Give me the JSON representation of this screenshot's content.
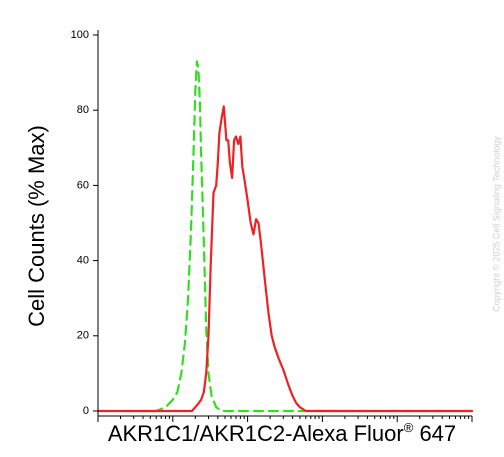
{
  "chart_data": {
    "type": "line",
    "title": "",
    "xlabel": "AKR1C1/AKR1C2-Alexa Fluor",
    "xlabel_superscript": "®",
    "xlabel_suffix": " 647",
    "ylabel": "Cell Counts (% Max)",
    "ylim": [
      0,
      100
    ],
    "yticks": [
      "0",
      "20",
      "40",
      "60",
      "80",
      "100"
    ],
    "xscale": "log",
    "xlim": [
      1,
      100000
    ],
    "grid": false,
    "legend": "none",
    "series": [
      {
        "color": "#33dd22",
        "style": "dashed",
        "x": [
          2.2,
          3.5,
          6,
          8,
          10,
          11.5,
          13,
          14.5,
          16,
          17.5,
          19,
          20,
          21,
          22,
          23,
          24,
          26,
          28,
          30,
          33,
          38,
          45,
          60,
          90,
          200,
          500,
          2000,
          10000,
          100000
        ],
        "y": [
          0,
          0,
          0,
          1,
          3,
          5,
          10,
          18,
          30,
          48,
          70,
          85,
          93,
          91,
          82,
          68,
          45,
          22,
          10,
          4,
          1,
          0,
          0,
          0,
          0,
          0,
          0,
          0,
          0
        ]
      },
      {
        "color": "#ee2222",
        "style": "solid",
        "x": [
          1,
          5,
          10,
          14,
          18,
          20,
          22,
          24,
          26,
          28,
          30,
          32,
          35,
          38,
          40,
          42,
          45,
          48,
          52,
          55,
          58,
          62,
          66,
          70,
          75,
          80,
          85,
          90,
          100,
          110,
          120,
          130,
          140,
          150,
          170,
          190,
          210,
          230,
          260,
          300,
          350,
          400,
          450,
          500,
          600,
          800,
          1500,
          5000,
          20000,
          100000
        ],
        "y": [
          0,
          0,
          0,
          0,
          0,
          1,
          2,
          3,
          5,
          10,
          20,
          38,
          58,
          60,
          66,
          74,
          78,
          81,
          72,
          72,
          66,
          62,
          72,
          73,
          71,
          73,
          65,
          62,
          56,
          50,
          47,
          51,
          50,
          45,
          35,
          26,
          20,
          17,
          14,
          11,
          7,
          4,
          2,
          1,
          0,
          0,
          0,
          0,
          0,
          0
        ]
      }
    ]
  },
  "watermark": "Copyright © 2025 Cell Signaling Technology"
}
